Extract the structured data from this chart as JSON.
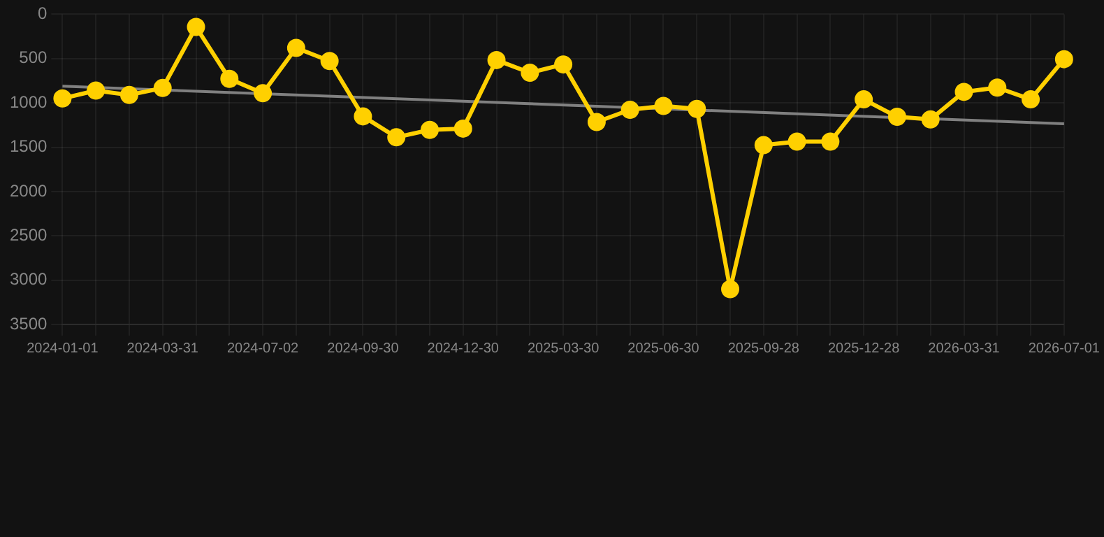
{
  "chart_data": {
    "type": "line",
    "categories": [
      "2024-01-01",
      null,
      null,
      "2024-03-31",
      null,
      null,
      "2024-07-02",
      null,
      null,
      "2024-09-30",
      null,
      null,
      "2024-12-30",
      null,
      null,
      "2025-03-30",
      null,
      null,
      "2025-06-30",
      null,
      null,
      "2025-09-28",
      null,
      null,
      "2025-12-28",
      null,
      null,
      "2026-03-31",
      null,
      null,
      "2026-07-01"
    ],
    "series": [
      {
        "color": "#ffd000",
        "marker": "circle",
        "values": [
          950,
          861,
          911,
          832,
          143,
          729,
          891,
          379,
          527,
          1152,
          1388,
          1305,
          1290,
          517,
          660,
          566,
          1216,
          1078,
          1034,
          1068,
          3102,
          1477,
          1437,
          1437,
          960,
          1157,
          1186,
          876,
          827,
          960,
          507
        ]
      },
      {
        "type": "line",
        "color": "#808080",
        "marker": "none",
        "values": [
          812,
          null,
          null,
          null,
          null,
          null,
          null,
          null,
          null,
          null,
          null,
          null,
          null,
          null,
          null,
          null,
          null,
          null,
          null,
          null,
          null,
          null,
          null,
          null,
          null,
          null,
          null,
          null,
          null,
          null,
          1236
        ]
      }
    ],
    "ylim": [
      3500,
      0
    ],
    "yticks": [
      0,
      500,
      1000,
      1500,
      2000,
      2500,
      3000,
      3500
    ],
    "grid": true
  }
}
